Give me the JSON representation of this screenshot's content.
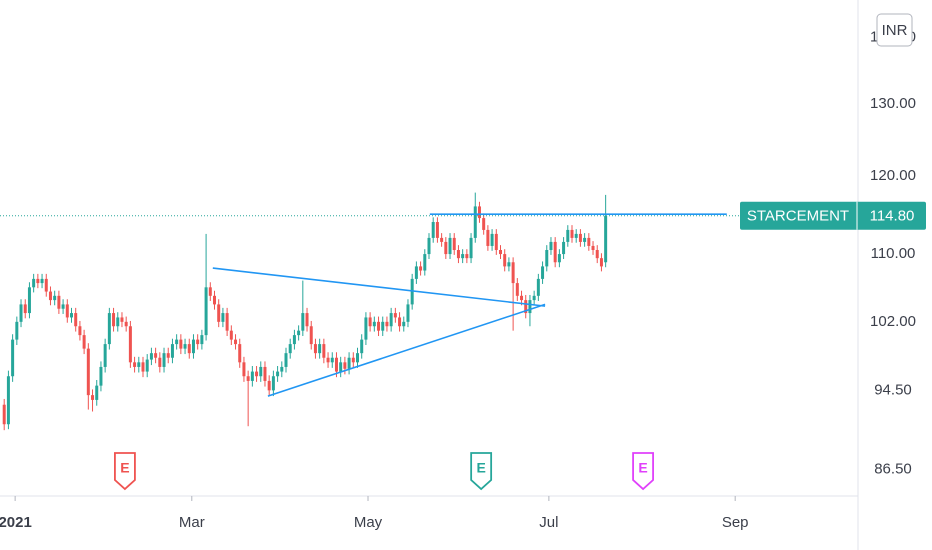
{
  "chart_data": {
    "type": "candlestick",
    "symbol": "STARCEMENT",
    "currency": "INR",
    "last_value": 114.8,
    "last_value_label": "114.80",
    "log_scale": true,
    "grid": false,
    "up_color": "#26a69a",
    "down_color": "#ef5350",
    "line_color": "#2196f3",
    "xlim": [
      -1,
      203
    ],
    "ylim": [
      84.1,
      146
    ],
    "xticks": [
      {
        "value": 2.6,
        "label": "2021"
      },
      {
        "value": 44.6,
        "label": "Mar"
      },
      {
        "value": 86.5,
        "label": "May"
      },
      {
        "value": 129.5,
        "label": "Jul"
      },
      {
        "value": 173.8,
        "label": "Sep"
      }
    ],
    "yticks": [
      {
        "value": 86.5,
        "label": "86.50"
      },
      {
        "value": 94.5,
        "label": "94.50"
      },
      {
        "value": 102,
        "label": "102.00"
      },
      {
        "value": 110,
        "label": "110.00"
      },
      {
        "value": 120,
        "label": "120.00"
      },
      {
        "value": 130,
        "label": "130.00"
      },
      {
        "value": 140,
        "label": "140.00"
      }
    ],
    "open": [
      93,
      91,
      96,
      100,
      102,
      104,
      103,
      106,
      107,
      106.5,
      107,
      105.5,
      104.5,
      105,
      103.5,
      104,
      102.5,
      103,
      101.5,
      100.5,
      99,
      94,
      93.5,
      95,
      97,
      99.5,
      103,
      101.5,
      102.5,
      102,
      101.5,
      97.5,
      97,
      97.5,
      96.5,
      97.8,
      98.5,
      98,
      97,
      98.5,
      98,
      99.5,
      100,
      99,
      99.5,
      98.5,
      100,
      99.5,
      100.5,
      106,
      105,
      104,
      102,
      103,
      101,
      100,
      99.5,
      97.5,
      96,
      95.5,
      96.5,
      96,
      97,
      95.5,
      94.5,
      96,
      96.5,
      97,
      98.5,
      99.5,
      100.5,
      101,
      103,
      101.5,
      99.5,
      98.5,
      99.5,
      98,
      97.5,
      98,
      96.5,
      97.5,
      96.8,
      98,
      97.5,
      98.5,
      100,
      102.5,
      101.5,
      102,
      101,
      102,
      101.5,
      103,
      102.5,
      101.5,
      102,
      104,
      107,
      108.5,
      108,
      110,
      112,
      114,
      112,
      111.5,
      110,
      112,
      110.5,
      109.5,
      110,
      109.5,
      112,
      116,
      114.5,
      113,
      111,
      112.5,
      110.5,
      110,
      108.5,
      109,
      106.5,
      105,
      104.5,
      103,
      104.5,
      105,
      107,
      108.5,
      110.5,
      111.5,
      109,
      110,
      111.5,
      113,
      112,
      112.5,
      111.5,
      112,
      111,
      110.5,
      109.5,
      109
    ],
    "high": [
      93.6,
      96.6,
      100.6,
      102.6,
      104.6,
      104.6,
      106.6,
      107.6,
      107.6,
      107.6,
      107.6,
      106.1,
      105.6,
      105.6,
      104.6,
      104.6,
      103.6,
      103.6,
      102.1,
      101.1,
      99.6,
      94.6,
      95.6,
      97.6,
      100.1,
      103.6,
      103.6,
      103.1,
      103.1,
      102.6,
      102.1,
      98.1,
      98.1,
      98.1,
      98.4,
      99.1,
      99.1,
      98.6,
      99.1,
      99.1,
      100.1,
      100.6,
      100.6,
      100.1,
      100.1,
      100.6,
      100.6,
      101.1,
      112.5,
      106.6,
      105.6,
      104.6,
      103.6,
      103.6,
      101.6,
      100.6,
      100.1,
      98.1,
      96.6,
      97.1,
      97.1,
      97.6,
      97.6,
      96.1,
      96.6,
      97.1,
      97.6,
      99.1,
      100.1,
      101.1,
      101.6,
      106.8,
      103.6,
      102.1,
      100.1,
      100.1,
      100.1,
      98.6,
      98.6,
      98.6,
      98.1,
      98.1,
      98.6,
      98.6,
      99.1,
      100.6,
      103.1,
      103.1,
      102.6,
      102.6,
      102.6,
      102.6,
      103.6,
      103.6,
      103.1,
      102.6,
      104.6,
      107.6,
      109.1,
      109.1,
      110.6,
      112.6,
      114.6,
      114.6,
      112.6,
      112.1,
      112.6,
      112.6,
      111.1,
      110.6,
      110.6,
      112.6,
      117.8,
      116.6,
      115.1,
      113.6,
      113.1,
      113.1,
      111.1,
      110.6,
      109.6,
      109.6,
      107.1,
      105.6,
      105.1,
      105.1,
      105.6,
      107.6,
      109.1,
      111.1,
      112.1,
      112.1,
      110.6,
      112.1,
      113.6,
      113.6,
      113.1,
      113.1,
      112.6,
      112.6,
      111.6,
      111.1,
      110.1,
      117.5
    ],
    "low": [
      90.4,
      90.5,
      95.4,
      99.4,
      101.4,
      102.4,
      102.4,
      105.4,
      105.9,
      105.9,
      104.9,
      103.9,
      103.9,
      102.9,
      102.9,
      101.9,
      101.9,
      100.9,
      99.9,
      98.4,
      92.5,
      92.3,
      92.9,
      94.4,
      96.4,
      98.9,
      100.9,
      100.9,
      101.4,
      100.9,
      96.9,
      96.4,
      96.4,
      95.9,
      95.9,
      97.2,
      97.4,
      96.4,
      96.4,
      97.4,
      97.4,
      98.9,
      98.4,
      98.4,
      97.9,
      97.9,
      98.9,
      98.9,
      99.9,
      104.4,
      103.4,
      101.4,
      101.4,
      100.4,
      99.4,
      98.9,
      96.9,
      95.4,
      90.8,
      94.9,
      95.4,
      95.4,
      94.9,
      93.9,
      93.9,
      95.4,
      95.9,
      96.4,
      97.9,
      98.9,
      99.9,
      100.4,
      100.9,
      98.9,
      97.9,
      97.9,
      97.4,
      96.9,
      96.9,
      95.9,
      95.9,
      96.2,
      96.2,
      96.9,
      96.9,
      97.9,
      99.4,
      100.9,
      100.9,
      100.4,
      100.4,
      100.9,
      100.9,
      101.9,
      100.9,
      100.9,
      101.4,
      103.4,
      106.4,
      107.4,
      107.4,
      109.4,
      111.4,
      111.4,
      110.9,
      109.4,
      109.4,
      109.9,
      108.9,
      108.9,
      108.9,
      108.9,
      111.4,
      113.9,
      112.4,
      110.4,
      110.4,
      109.9,
      109.4,
      107.9,
      107.9,
      101,
      104.4,
      103.9,
      102.4,
      101.5,
      103.9,
      104.4,
      106.4,
      107.9,
      109.9,
      108.4,
      108.4,
      109.4,
      110.9,
      111.4,
      111.4,
      110.9,
      110.9,
      110.4,
      109.9,
      108.9,
      107.9,
      108.4
    ],
    "close": [
      91,
      96,
      100,
      102,
      104,
      103,
      106,
      107,
      106.5,
      107,
      105.5,
      104.5,
      105,
      103.5,
      104,
      102.5,
      103,
      101.5,
      100.5,
      99,
      94,
      93.5,
      95,
      97,
      99.5,
      103,
      101.5,
      102.5,
      102,
      101.5,
      97.5,
      97,
      97.5,
      96.5,
      97.8,
      98.5,
      98,
      97,
      98.5,
      98,
      99.5,
      100,
      99,
      99.5,
      98.5,
      100,
      99.5,
      100.5,
      106,
      105,
      104,
      102,
      103,
      101,
      100,
      99.5,
      97.5,
      96,
      95.5,
      96.5,
      96,
      97,
      95.5,
      94.5,
      96,
      96.5,
      97,
      98.5,
      99.5,
      100.5,
      101,
      103,
      101.5,
      99.5,
      98.5,
      99.5,
      98,
      97.5,
      98,
      96.5,
      97.5,
      96.8,
      98,
      97.5,
      98.5,
      100,
      102.5,
      101.5,
      102,
      101,
      102,
      101.5,
      103,
      102.5,
      101.5,
      102,
      104,
      107,
      108.5,
      108,
      110,
      112,
      114,
      112,
      111.5,
      110,
      112,
      110.5,
      109.5,
      110,
      109.5,
      112,
      116,
      114.5,
      113,
      111,
      112.5,
      110.5,
      110,
      108.5,
      109,
      106.5,
      105,
      104.5,
      103,
      104.5,
      105,
      107,
      108.5,
      110.5,
      111.5,
      109,
      110,
      111.5,
      113,
      112,
      112.5,
      111.5,
      112,
      111,
      110.5,
      109.5,
      108.5,
      114.8
    ],
    "drawings": [
      {
        "points": [
          [
            49.6,
            108.3
          ],
          [
            128.6,
            103.8
          ]
        ]
      },
      {
        "points": [
          [
            62.7,
            93.9
          ],
          [
            128.6,
            104.0
          ]
        ]
      },
      {
        "points": [
          [
            101.2,
            115
          ],
          [
            171.8,
            115
          ]
        ]
      }
    ],
    "events": [
      {
        "label": "E",
        "x": 28.7,
        "color": "#ef5350"
      },
      {
        "label": "E",
        "x": 113.4,
        "color": "#26a69a"
      },
      {
        "label": "E",
        "x": 151.9,
        "color": "#e040fb"
      }
    ]
  }
}
